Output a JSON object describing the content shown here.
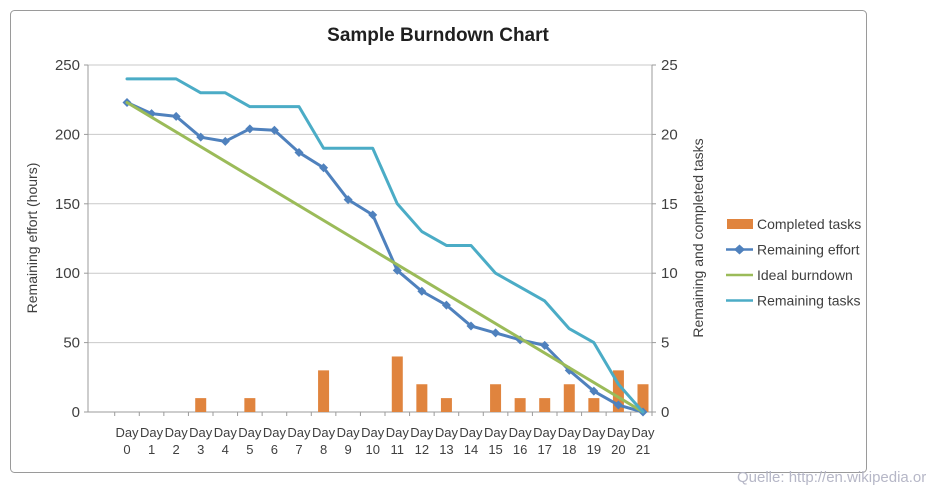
{
  "frame_caption": "Quelle: http://en.wikipedia.org",
  "chart_data": {
    "type": "combo",
    "title": "Sample Burndown Chart",
    "category_prefix": "Day",
    "categories": [
      0,
      1,
      2,
      3,
      4,
      5,
      6,
      7,
      8,
      9,
      10,
      11,
      12,
      13,
      14,
      15,
      16,
      17,
      18,
      19,
      20,
      21
    ],
    "left_axis": {
      "title": "Remaining effort (hours)",
      "min": 0,
      "max": 250,
      "ticks": [
        0,
        50,
        100,
        150,
        200,
        250
      ]
    },
    "right_axis": {
      "title": "Remaining and completed tasks",
      "min": 0,
      "max": 25,
      "ticks": [
        0,
        5,
        10,
        15,
        20,
        25
      ]
    },
    "grid": true,
    "legend_position": "right",
    "series": [
      {
        "name": "Completed tasks",
        "type": "bar",
        "axis": "right",
        "color": "#E0843E",
        "values": [
          0,
          0,
          0,
          1,
          0,
          1,
          0,
          0,
          3,
          0,
          0,
          4,
          2,
          1,
          0,
          2,
          1,
          1,
          2,
          1,
          3,
          2
        ]
      },
      {
        "name": "Remaining effort",
        "type": "line",
        "axis": "left",
        "color": "#4F81BD",
        "marker": "diamond",
        "values": [
          223,
          215,
          213,
          198,
          195,
          204,
          203,
          187,
          176,
          153,
          142,
          102,
          87,
          77,
          62,
          57,
          52,
          48,
          30,
          15,
          5,
          0
        ]
      },
      {
        "name": "Ideal burndown",
        "type": "line",
        "axis": "left",
        "color": "#9BBB59",
        "start": 223,
        "end": 0
      },
      {
        "name": "Remaining tasks",
        "type": "line",
        "axis": "right",
        "color": "#4BACC6",
        "values": [
          24,
          24,
          24,
          23,
          23,
          22,
          22,
          22,
          19,
          19,
          19,
          15,
          13,
          12,
          12,
          10,
          9,
          8,
          6,
          5,
          2,
          0
        ]
      }
    ]
  }
}
